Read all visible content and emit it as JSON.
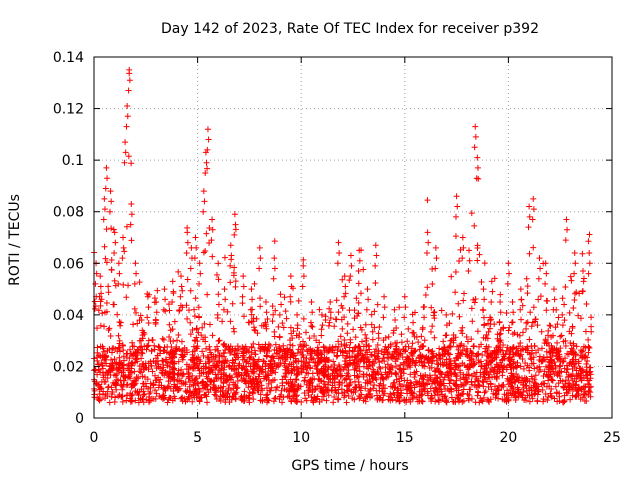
{
  "chart_data": {
    "type": "scatter",
    "title": "Day 142 of 2023, Rate Of TEC Index for receiver p392",
    "xlabel": "GPS time / hours",
    "ylabel": "ROTI / TECUs",
    "xlim": [
      0,
      25
    ],
    "ylim": [
      0,
      0.14
    ],
    "x_ticks": [
      "0",
      "5",
      "10",
      "15",
      "20",
      "25"
    ],
    "y_ticks": [
      "0",
      "0.02",
      "0.04",
      "0.06",
      "0.08",
      "0.1",
      "0.12",
      "0.14"
    ],
    "grid": true,
    "marker": "+",
    "color": "#ff0000",
    "series": [
      {
        "values": "dense scatter of ROTI samples every ~30 s from 0 to 24 h",
        "x": [
          0.1,
          0.3,
          0.5,
          0.6,
          0.8,
          1.0,
          1.2,
          1.4,
          1.5,
          1.6,
          1.7,
          1.8,
          2.0,
          2.3,
          2.6,
          3.0,
          3.4,
          3.8,
          4.2,
          4.5,
          4.7,
          4.9,
          5.1,
          5.3,
          5.4,
          5.5,
          5.7,
          6.0,
          6.3,
          6.6,
          6.8,
          7.2,
          7.6,
          8.0,
          8.3,
          8.7,
          9.0,
          9.5,
          9.8,
          10.1,
          10.5,
          11.0,
          11.4,
          11.8,
          12.1,
          12.4,
          12.8,
          13.2,
          13.6,
          14.0,
          14.5,
          15.0,
          15.4,
          15.9,
          16.1,
          16.5,
          17.0,
          17.5,
          17.8,
          18.1,
          18.4,
          18.5,
          18.8,
          19.2,
          19.6,
          20.0,
          20.2,
          20.6,
          21.0,
          21.2,
          21.5,
          21.8,
          22.2,
          22.6,
          22.8,
          23.2,
          23.6,
          23.9
        ],
        "y": [
          0.06,
          0.055,
          0.085,
          0.097,
          0.088,
          0.072,
          0.06,
          0.07,
          0.107,
          0.121,
          0.135,
          0.083,
          0.06,
          0.038,
          0.047,
          0.045,
          0.05,
          0.053,
          0.055,
          0.072,
          0.066,
          0.07,
          0.06,
          0.088,
          0.103,
          0.112,
          0.077,
          0.048,
          0.05,
          0.067,
          0.079,
          0.055,
          0.05,
          0.066,
          0.045,
          0.062,
          0.048,
          0.055,
          0.04,
          0.059,
          0.045,
          0.04,
          0.045,
          0.068,
          0.055,
          0.063,
          0.065,
          0.05,
          0.067,
          0.047,
          0.042,
          0.047,
          0.037,
          0.043,
          0.072,
          0.066,
          0.04,
          0.086,
          0.07,
          0.065,
          0.113,
          0.101,
          0.05,
          0.053,
          0.045,
          0.06,
          0.045,
          0.05,
          0.082,
          0.085,
          0.062,
          0.06,
          0.05,
          0.04,
          0.077,
          0.064,
          0.057,
          0.064
        ]
      }
    ]
  }
}
